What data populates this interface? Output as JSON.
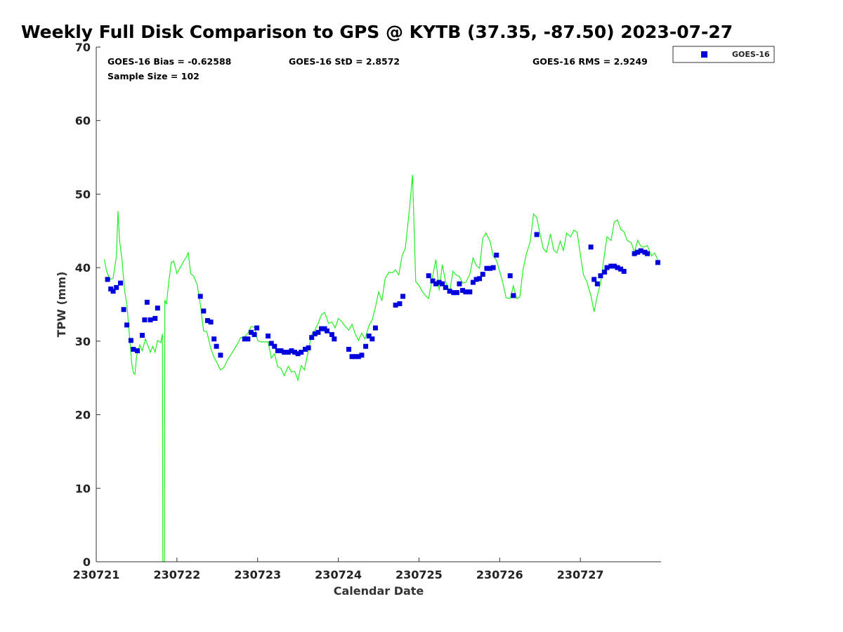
{
  "chart_data": {
    "type": "scatter",
    "title": "Weekly Full Disk Comparison to GPS @ KYTB (37.35, -87.50) 2023-07-27",
    "xlabel": "Calendar Date",
    "ylabel": "TPW (mm)",
    "xlim": [
      0,
      7
    ],
    "ylim": [
      0,
      70
    ],
    "yticks": [
      0,
      10,
      20,
      30,
      40,
      50,
      60,
      70
    ],
    "xtick_labels": [
      "230721",
      "230722",
      "230723",
      "230724",
      "230725",
      "230726",
      "230727"
    ],
    "stats": [
      "GOES-16 Bias = -0.62588",
      "GOES-16 StD = 2.8572",
      "GOES-16 RMS = 2.9249",
      "Sample Size = 102"
    ],
    "legend": {
      "label": "GOES-16",
      "position": "top-right outside"
    },
    "colors": {
      "goes": "#0000dd",
      "gps": "#22ee22"
    },
    "series": [
      {
        "name": "GOES-16",
        "kind": "markers",
        "points": [
          [
            0.14,
            38.4
          ],
          [
            0.18,
            37.1
          ],
          [
            0.21,
            36.8
          ],
          [
            0.25,
            37.3
          ],
          [
            0.3,
            37.9
          ],
          [
            0.34,
            34.3
          ],
          [
            0.38,
            32.2
          ],
          [
            0.43,
            30.1
          ],
          [
            0.46,
            28.9
          ],
          [
            0.51,
            28.7
          ],
          [
            0.57,
            30.8
          ],
          [
            0.6,
            32.9
          ],
          [
            0.63,
            35.3
          ],
          [
            0.67,
            32.9
          ],
          [
            0.73,
            33.1
          ],
          [
            0.76,
            34.5
          ],
          [
            1.29,
            36.1
          ],
          [
            1.33,
            34.1
          ],
          [
            1.38,
            32.8
          ],
          [
            1.42,
            32.6
          ],
          [
            1.46,
            30.3
          ],
          [
            1.49,
            29.3
          ],
          [
            1.54,
            28.1
          ],
          [
            1.84,
            30.3
          ],
          [
            1.88,
            30.3
          ],
          [
            1.92,
            31.2
          ],
          [
            1.96,
            30.9
          ],
          [
            1.99,
            31.8
          ],
          [
            2.13,
            30.7
          ],
          [
            2.17,
            29.7
          ],
          [
            2.21,
            29.3
          ],
          [
            2.25,
            28.7
          ],
          [
            2.29,
            28.7
          ],
          [
            2.33,
            28.5
          ],
          [
            2.38,
            28.5
          ],
          [
            2.42,
            28.7
          ],
          [
            2.46,
            28.5
          ],
          [
            2.5,
            28.3
          ],
          [
            2.54,
            28.5
          ],
          [
            2.59,
            28.9
          ],
          [
            2.63,
            29.1
          ],
          [
            2.67,
            30.5
          ],
          [
            2.71,
            31.0
          ],
          [
            2.75,
            31.2
          ],
          [
            2.79,
            31.7
          ],
          [
            2.83,
            31.7
          ],
          [
            2.86,
            31.4
          ],
          [
            2.92,
            30.9
          ],
          [
            2.95,
            30.3
          ],
          [
            3.13,
            28.9
          ],
          [
            3.17,
            27.9
          ],
          [
            3.21,
            27.9
          ],
          [
            3.25,
            27.9
          ],
          [
            3.29,
            28.1
          ],
          [
            3.34,
            29.3
          ],
          [
            3.38,
            30.7
          ],
          [
            3.42,
            30.3
          ],
          [
            3.46,
            31.8
          ],
          [
            3.71,
            34.9
          ],
          [
            3.76,
            35.1
          ],
          [
            3.8,
            36.1
          ],
          [
            4.12,
            38.9
          ],
          [
            4.17,
            38.2
          ],
          [
            4.21,
            37.8
          ],
          [
            4.25,
            38.0
          ],
          [
            4.29,
            37.8
          ],
          [
            4.33,
            37.3
          ],
          [
            4.38,
            36.8
          ],
          [
            4.43,
            36.6
          ],
          [
            4.47,
            36.6
          ],
          [
            4.5,
            37.8
          ],
          [
            4.54,
            36.9
          ],
          [
            4.58,
            36.7
          ],
          [
            4.63,
            36.7
          ],
          [
            4.67,
            38.0
          ],
          [
            4.71,
            38.4
          ],
          [
            4.75,
            38.5
          ],
          [
            4.79,
            39.1
          ],
          [
            4.84,
            39.9
          ],
          [
            4.88,
            39.9
          ],
          [
            4.92,
            40.0
          ],
          [
            4.96,
            41.7
          ],
          [
            5.13,
            38.9
          ],
          [
            5.17,
            36.2
          ],
          [
            5.46,
            44.5
          ],
          [
            6.13,
            42.8
          ],
          [
            6.17,
            38.4
          ],
          [
            6.21,
            37.8
          ],
          [
            6.25,
            38.9
          ],
          [
            6.3,
            39.4
          ],
          [
            6.33,
            40.0
          ],
          [
            6.38,
            40.2
          ],
          [
            6.42,
            40.2
          ],
          [
            6.46,
            40.0
          ],
          [
            6.5,
            39.8
          ],
          [
            6.54,
            39.5
          ],
          [
            6.67,
            41.9
          ],
          [
            6.71,
            42.1
          ],
          [
            6.75,
            42.3
          ],
          [
            6.8,
            42.1
          ],
          [
            6.83,
            41.9
          ],
          [
            6.96,
            40.7
          ]
        ]
      },
      {
        "name": "GPS",
        "kind": "line",
        "points": [
          [
            0.1,
            41.1
          ],
          [
            0.13,
            39.5
          ],
          [
            0.17,
            38.4
          ],
          [
            0.21,
            38.6
          ],
          [
            0.25,
            41.5
          ],
          [
            0.27,
            47.7
          ],
          [
            0.29,
            43.6
          ],
          [
            0.32,
            41.0
          ],
          [
            0.35,
            37.0
          ],
          [
            0.38,
            35.0
          ],
          [
            0.41,
            31.0
          ],
          [
            0.44,
            27.0
          ],
          [
            0.46,
            25.7
          ],
          [
            0.48,
            25.5
          ],
          [
            0.5,
            28.0
          ],
          [
            0.54,
            29.5
          ],
          [
            0.57,
            28.7
          ],
          [
            0.61,
            30.3
          ],
          [
            0.64,
            29.4
          ],
          [
            0.67,
            28.5
          ],
          [
            0.7,
            29.3
          ],
          [
            0.73,
            28.5
          ],
          [
            0.76,
            30.1
          ],
          [
            0.8,
            29.8
          ],
          [
            0.82,
            31.0
          ],
          [
            0.825,
            0.0
          ],
          [
            0.845,
            0.0
          ],
          [
            0.85,
            35.6
          ],
          [
            0.87,
            35.0
          ],
          [
            0.9,
            38.2
          ],
          [
            0.93,
            40.7
          ],
          [
            0.96,
            40.9
          ],
          [
            1.0,
            39.2
          ],
          [
            1.04,
            40.0
          ],
          [
            1.08,
            40.8
          ],
          [
            1.12,
            41.5
          ],
          [
            1.14,
            42.1
          ],
          [
            1.17,
            39.2
          ],
          [
            1.21,
            38.8
          ],
          [
            1.25,
            37.7
          ],
          [
            1.29,
            35.0
          ],
          [
            1.33,
            31.4
          ],
          [
            1.37,
            31.3
          ],
          [
            1.42,
            29.0
          ],
          [
            1.46,
            27.8
          ],
          [
            1.5,
            27.0
          ],
          [
            1.54,
            26.1
          ],
          [
            1.58,
            26.4
          ],
          [
            1.63,
            27.5
          ],
          [
            1.67,
            28.2
          ],
          [
            1.71,
            28.9
          ],
          [
            1.75,
            29.6
          ],
          [
            1.79,
            30.5
          ],
          [
            1.83,
            30.5
          ],
          [
            1.88,
            31.1
          ],
          [
            1.92,
            32.0
          ],
          [
            1.96,
            31.9
          ],
          [
            2.0,
            30.1
          ],
          [
            2.04,
            29.9
          ],
          [
            2.08,
            29.9
          ],
          [
            2.13,
            29.9
          ],
          [
            2.17,
            27.7
          ],
          [
            2.21,
            28.3
          ],
          [
            2.25,
            26.5
          ],
          [
            2.29,
            26.3
          ],
          [
            2.33,
            25.3
          ],
          [
            2.38,
            26.6
          ],
          [
            2.42,
            25.8
          ],
          [
            2.46,
            25.9
          ],
          [
            2.5,
            24.7
          ],
          [
            2.54,
            26.7
          ],
          [
            2.58,
            26.1
          ],
          [
            2.63,
            28.8
          ],
          [
            2.67,
            30.9
          ],
          [
            2.71,
            31.5
          ],
          [
            2.75,
            32.4
          ],
          [
            2.79,
            33.6
          ],
          [
            2.83,
            33.9
          ],
          [
            2.88,
            32.4
          ],
          [
            2.92,
            32.6
          ],
          [
            2.96,
            31.8
          ],
          [
            3.0,
            33.1
          ],
          [
            3.04,
            32.7
          ],
          [
            3.08,
            32.1
          ],
          [
            3.13,
            31.5
          ],
          [
            3.17,
            32.3
          ],
          [
            3.21,
            31.0
          ],
          [
            3.25,
            30.1
          ],
          [
            3.29,
            31.1
          ],
          [
            3.33,
            30.3
          ],
          [
            3.38,
            32.1
          ],
          [
            3.42,
            32.9
          ],
          [
            3.46,
            34.6
          ],
          [
            3.5,
            36.7
          ],
          [
            3.54,
            35.5
          ],
          [
            3.58,
            38.5
          ],
          [
            3.63,
            39.4
          ],
          [
            3.67,
            39.3
          ],
          [
            3.71,
            39.7
          ],
          [
            3.75,
            39.0
          ],
          [
            3.79,
            41.6
          ],
          [
            3.83,
            42.6
          ],
          [
            3.88,
            47.7
          ],
          [
            3.92,
            52.6
          ],
          [
            3.96,
            38.1
          ],
          [
            4.0,
            37.6
          ],
          [
            4.04,
            36.8
          ],
          [
            4.08,
            36.2
          ],
          [
            4.12,
            35.8
          ],
          [
            4.17,
            38.9
          ],
          [
            4.21,
            41.1
          ],
          [
            4.25,
            36.9
          ],
          [
            4.29,
            40.4
          ],
          [
            4.33,
            38.1
          ],
          [
            4.38,
            36.7
          ],
          [
            4.42,
            39.5
          ],
          [
            4.46,
            39.0
          ],
          [
            4.5,
            38.8
          ],
          [
            4.54,
            37.9
          ],
          [
            4.58,
            38.0
          ],
          [
            4.63,
            39.1
          ],
          [
            4.67,
            41.3
          ],
          [
            4.71,
            40.3
          ],
          [
            4.75,
            39.9
          ],
          [
            4.79,
            44.0
          ],
          [
            4.83,
            44.7
          ],
          [
            4.88,
            43.6
          ],
          [
            4.92,
            41.6
          ],
          [
            4.96,
            41.0
          ],
          [
            5.0,
            39.5
          ],
          [
            5.04,
            37.9
          ],
          [
            5.08,
            35.9
          ],
          [
            5.13,
            35.8
          ],
          [
            5.17,
            37.5
          ],
          [
            5.21,
            35.8
          ],
          [
            5.25,
            36.0
          ],
          [
            5.29,
            39.8
          ],
          [
            5.33,
            41.8
          ],
          [
            5.38,
            43.6
          ],
          [
            5.42,
            47.3
          ],
          [
            5.46,
            46.8
          ],
          [
            5.5,
            44.6
          ],
          [
            5.54,
            42.6
          ],
          [
            5.58,
            42.1
          ],
          [
            5.63,
            44.6
          ],
          [
            5.67,
            42.4
          ],
          [
            5.71,
            42.0
          ],
          [
            5.75,
            43.6
          ],
          [
            5.79,
            42.3
          ],
          [
            5.83,
            44.7
          ],
          [
            5.88,
            44.2
          ],
          [
            5.92,
            45.1
          ],
          [
            5.96,
            44.8
          ],
          [
            6.0,
            41.8
          ],
          [
            6.04,
            39.0
          ],
          [
            6.08,
            38.1
          ],
          [
            6.13,
            36.2
          ],
          [
            6.17,
            34.0
          ],
          [
            6.21,
            36.2
          ],
          [
            6.25,
            37.9
          ],
          [
            6.29,
            41.1
          ],
          [
            6.33,
            44.2
          ],
          [
            6.38,
            43.7
          ],
          [
            6.42,
            46.2
          ],
          [
            6.46,
            46.5
          ],
          [
            6.5,
            45.2
          ],
          [
            6.54,
            44.9
          ],
          [
            6.58,
            43.7
          ],
          [
            6.63,
            43.4
          ],
          [
            6.67,
            42.1
          ],
          [
            6.71,
            43.7
          ],
          [
            6.75,
            42.9
          ],
          [
            6.79,
            42.8
          ],
          [
            6.83,
            43.0
          ],
          [
            6.88,
            41.6
          ],
          [
            6.92,
            42.0
          ],
          [
            6.96,
            41.1
          ]
        ]
      }
    ]
  }
}
